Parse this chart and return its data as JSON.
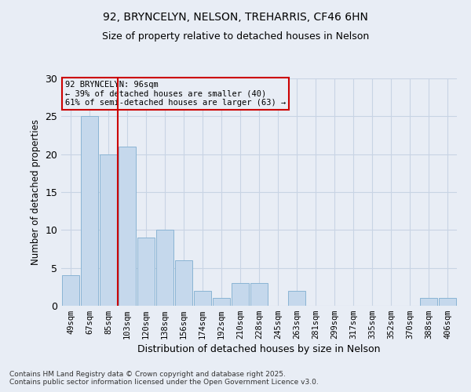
{
  "title1": "92, BRYNCELYN, NELSON, TREHARRIS, CF46 6HN",
  "title2": "Size of property relative to detached houses in Nelson",
  "xlabel": "Distribution of detached houses by size in Nelson",
  "ylabel": "Number of detached properties",
  "categories": [
    "49sqm",
    "67sqm",
    "85sqm",
    "103sqm",
    "120sqm",
    "138sqm",
    "156sqm",
    "174sqm",
    "192sqm",
    "210sqm",
    "228sqm",
    "245sqm",
    "263sqm",
    "281sqm",
    "299sqm",
    "317sqm",
    "335sqm",
    "352sqm",
    "370sqm",
    "388sqm",
    "406sqm"
  ],
  "values": [
    4,
    25,
    20,
    21,
    9,
    10,
    6,
    2,
    1,
    3,
    3,
    0,
    2,
    0,
    0,
    0,
    0,
    0,
    0,
    1,
    1
  ],
  "bar_color": "#c5d8ec",
  "bar_edge_color": "#8ab4d4",
  "vline_x": 2.5,
  "vline_color": "#cc0000",
  "annotation_text": "92 BRYNCELYN: 96sqm\n← 39% of detached houses are smaller (40)\n61% of semi-detached houses are larger (63) →",
  "annotation_box_color": "#cc0000",
  "ylim": [
    0,
    30
  ],
  "yticks": [
    0,
    5,
    10,
    15,
    20,
    25,
    30
  ],
  "grid_color": "#c8d4e4",
  "background_color": "#e8edf5",
  "footer": "Contains HM Land Registry data © Crown copyright and database right 2025.\nContains public sector information licensed under the Open Government Licence v3.0."
}
